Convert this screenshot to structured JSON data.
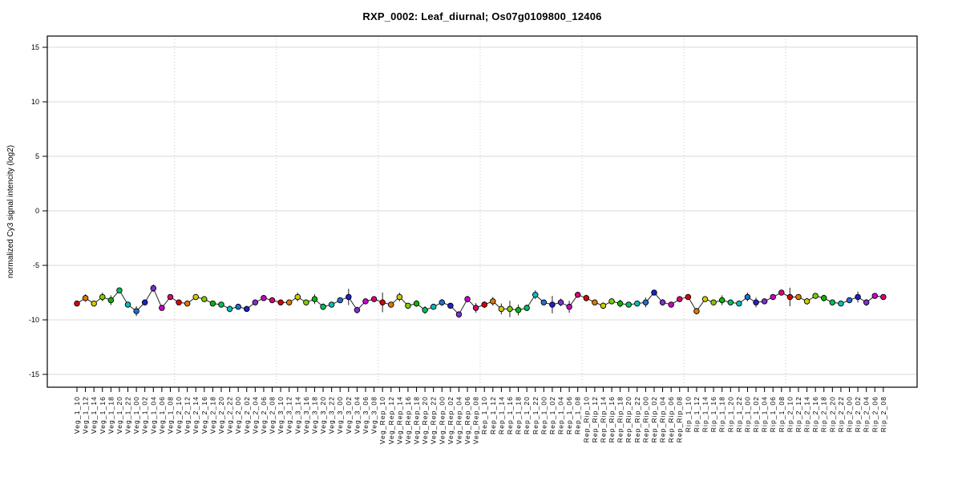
{
  "page": {
    "background": "#ffffff"
  },
  "header": {
    "title": "RXP_0002: Leaf_diurnal; Os07g0109800_12406"
  },
  "chart_data": {
    "type": "line",
    "title": "RXP_0002: Leaf_diurnal; Os07g0109800_12406",
    "xlabel": "",
    "ylabel": "normalized Cy3 signal intencity (log2)",
    "ylim": [
      -16,
      16
    ],
    "yticks": [
      -15,
      -10,
      -5,
      0,
      5,
      10,
      15
    ],
    "legend_position": "none",
    "grid": {
      "horizontal": "solid",
      "vertical": "dotted at group boundaries"
    },
    "groups": [
      "Veg_1",
      "Veg_2",
      "Veg_3",
      "Veg_Rep",
      "Rep_1",
      "Rep_Rip",
      "Rip_1",
      "Rip_2"
    ],
    "times": [
      "10",
      "12",
      "14",
      "16",
      "18",
      "20",
      "22",
      "00",
      "02",
      "04",
      "06",
      "08"
    ],
    "categories": [
      "Veg_1_10",
      "Veg_1_12",
      "Veg_1_14",
      "Veg_1_16",
      "Veg_1_18",
      "Veg_1_20",
      "Veg_1_22",
      "Veg_1_00",
      "Veg_1_02",
      "Veg_1_04",
      "Veg_1_06",
      "Veg_1_08",
      "Veg_2_10",
      "Veg_2_12",
      "Veg_2_14",
      "Veg_2_16",
      "Veg_2_18",
      "Veg_2_20",
      "Veg_2_22",
      "Veg_2_00",
      "Veg_2_02",
      "Veg_2_04",
      "Veg_2_06",
      "Veg_2_08",
      "Veg_3_10",
      "Veg_3_12",
      "Veg_3_14",
      "Veg_3_16",
      "Veg_3_18",
      "Veg_3_20",
      "Veg_3_22",
      "Veg_3_00",
      "Veg_3_02",
      "Veg_3_04",
      "Veg_3_06",
      "Veg_3_08",
      "Veg_Rep_10",
      "Veg_Rep_12",
      "Veg_Rep_14",
      "Veg_Rep_16",
      "Veg_Rep_18",
      "Veg_Rep_20",
      "Veg_Rep_22",
      "Veg_Rep_00",
      "Veg_Rep_02",
      "Veg_Rep_04",
      "Veg_Rep_06",
      "Veg_Rep_08",
      "Rep_1_10",
      "Rep_1_12",
      "Rep_1_14",
      "Rep_1_16",
      "Rep_1_18",
      "Rep_1_20",
      "Rep_1_22",
      "Rep_1_00",
      "Rep_1_02",
      "Rep_1_04",
      "Rep_1_06",
      "Rep_1_08",
      "Rep_Rip_10",
      "Rep_Rip_12",
      "Rep_Rip_14",
      "Rep_Rip_16",
      "Rep_Rip_18",
      "Rep_Rip_20",
      "Rep_Rip_22",
      "Rep_Rip_00",
      "Rep_Rip_02",
      "Rep_Rip_04",
      "Rep_Rip_06",
      "Rep_Rip_08",
      "Rip_1_10",
      "Rip_1_12",
      "Rip_1_14",
      "Rip_1_16",
      "Rip_1_18",
      "Rip_1_20",
      "Rip_1_22",
      "Rip_1_00",
      "Rip_1_02",
      "Rip_1_04",
      "Rip_1_06",
      "Rip_1_08",
      "Rip_2_10",
      "Rip_2_12",
      "Rip_2_14",
      "Rip_2_16",
      "Rip_2_18",
      "Rip_2_20",
      "Rip_2_22",
      "Rip_2_00",
      "Rip_2_02",
      "Rip_2_04",
      "Rip_2_06",
      "Rip_2_08"
    ],
    "series": [
      {
        "name": "Cy3 signal",
        "values": [
          -8.5,
          -8.0,
          -8.5,
          -7.9,
          -8.2,
          -7.3,
          -8.6,
          -9.2,
          -8.4,
          -7.1,
          -8.9,
          -7.9,
          -8.4,
          -8.5,
          -7.9,
          -8.1,
          -8.5,
          -8.6,
          -9.0,
          -8.8,
          -9.0,
          -8.4,
          -8.0,
          -8.2,
          -8.4,
          -8.4,
          -7.9,
          -8.4,
          -8.1,
          -8.8,
          -8.6,
          -8.2,
          -7.9,
          -9.1,
          -8.3,
          -8.1,
          -8.4,
          -8.6,
          -7.9,
          -8.7,
          -8.5,
          -9.1,
          -8.8,
          -8.4,
          -8.7,
          -9.5,
          -8.1,
          -8.9,
          -8.6,
          -8.3,
          -9.0,
          -9.0,
          -9.1,
          -8.9,
          -7.7,
          -8.4,
          -8.6,
          -8.4,
          -8.8,
          -7.7,
          -8.0,
          -8.4,
          -8.7,
          -8.3,
          -8.5,
          -8.6,
          -8.5,
          -8.4,
          -7.5,
          -8.4,
          -8.6,
          -8.1,
          -7.9,
          -9.2,
          -8.1,
          -8.4,
          -8.2,
          -8.4,
          -8.5,
          -7.9,
          -8.4,
          -8.3,
          -7.9,
          -7.5,
          -7.9,
          -7.9,
          -8.3,
          -7.8,
          -8.0,
          -8.4,
          -8.5,
          -8.2,
          -7.9,
          -8.4,
          -7.8,
          -7.9
        ],
        "errors": [
          0.15,
          0.35,
          0.15,
          0.4,
          0.45,
          0.2,
          0.15,
          0.45,
          0.2,
          0.35,
          0.15,
          0.15,
          0.2,
          0.15,
          0.15,
          0.25,
          0.15,
          0.15,
          0.3,
          0.15,
          0.25,
          0.15,
          0.15,
          0.15,
          0.15,
          0.15,
          0.4,
          0.15,
          0.45,
          0.3,
          0.15,
          0.15,
          0.75,
          0.3,
          0.15,
          0.15,
          0.9,
          0.15,
          0.4,
          0.15,
          0.3,
          0.35,
          0.15,
          0.3,
          0.15,
          0.3,
          0.3,
          0.45,
          0.3,
          0.4,
          0.5,
          0.75,
          0.5,
          0.3,
          0.4,
          0.15,
          0.8,
          0.35,
          0.55,
          0.15,
          0.3,
          0.15,
          0.3,
          0.15,
          0.35,
          0.15,
          0.15,
          0.45,
          0.2,
          0.3,
          0.15,
          0.15,
          0.15,
          0.3,
          0.15,
          0.15,
          0.45,
          0.15,
          0.15,
          0.4,
          0.45,
          0.15,
          0.15,
          0.15,
          0.85,
          0.15,
          0.3,
          0.15,
          0.3,
          0.15,
          0.15,
          0.15,
          0.5,
          0.3,
          0.15,
          0.15
        ]
      }
    ],
    "point_color_cycle": [
      "#dd0000",
      "#e07800",
      "#cccc00",
      "#7fcc00",
      "#00bb00",
      "#00c060",
      "#00bfbf",
      "#2070d0",
      "#2020cc",
      "#7f2fcc",
      "#cc00cc",
      "#dd0077"
    ],
    "colors": {
      "frame": "#000000",
      "line": "#222222",
      "error_bar": "#333333",
      "h_grid": "#d9d9d9",
      "v_grid": "#c8c8c8",
      "tick": "#000000",
      "text": "#000000"
    }
  }
}
